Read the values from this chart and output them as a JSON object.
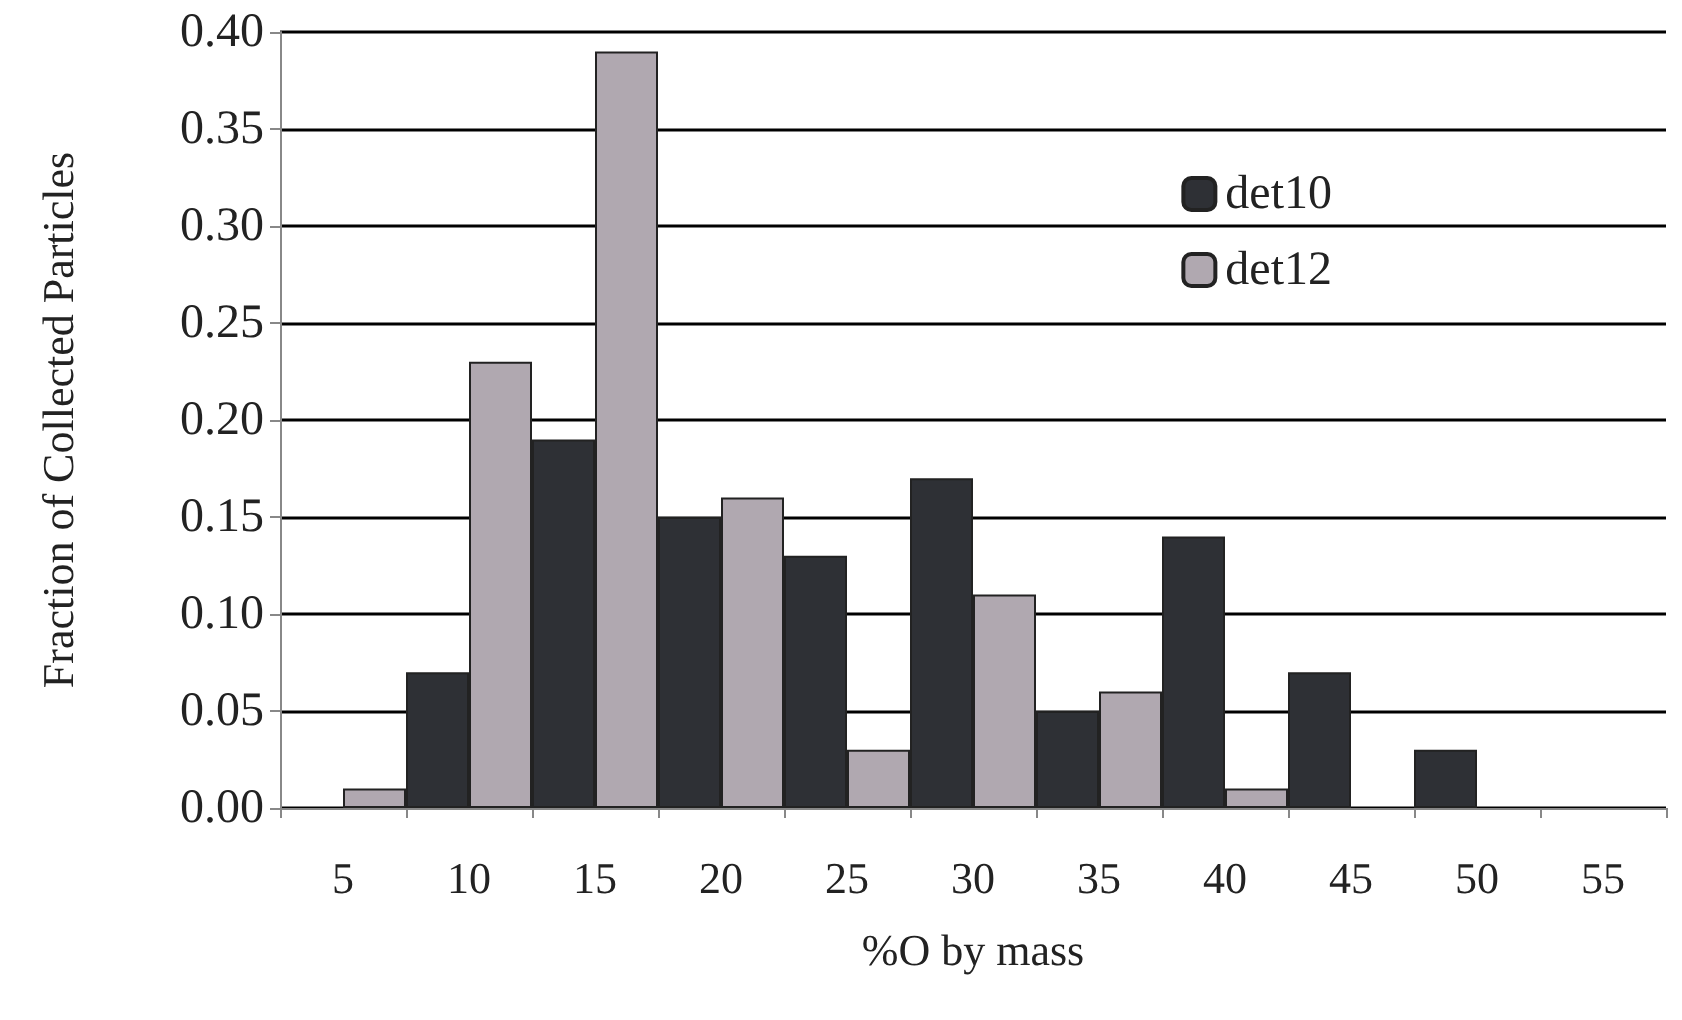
{
  "chart_data": {
    "type": "bar",
    "xlabel": "%O by mass",
    "ylabel": "Fraction of Collected Particles",
    "categories": [
      "5",
      "10",
      "15",
      "20",
      "25",
      "30",
      "35",
      "40",
      "45",
      "50",
      "55"
    ],
    "series": [
      {
        "name": "det10",
        "color": "#2e3035",
        "values": [
          0,
          0.07,
          0.19,
          0.15,
          0.13,
          0.17,
          0.05,
          0.14,
          0.07,
          0.03,
          0
        ]
      },
      {
        "name": "det12",
        "color": "#b0a8b0",
        "values": [
          0.01,
          0.23,
          0.39,
          0.16,
          0.03,
          0.11,
          0.06,
          0.01,
          0,
          0,
          0
        ]
      }
    ],
    "ylim": [
      0,
      0.4
    ],
    "yticks": [
      {
        "value": 0,
        "label": "0.00"
      },
      0.05,
      {
        "value": 0.1,
        "label": "0.10"
      },
      0.15,
      {
        "value": 0.2,
        "label": "0.20"
      },
      0.25,
      {
        "value": 0.3,
        "label": "0.30"
      },
      0.35,
      {
        "value": 0.4,
        "label": "0.40"
      }
    ],
    "grid": "y",
    "legend": "top right"
  }
}
